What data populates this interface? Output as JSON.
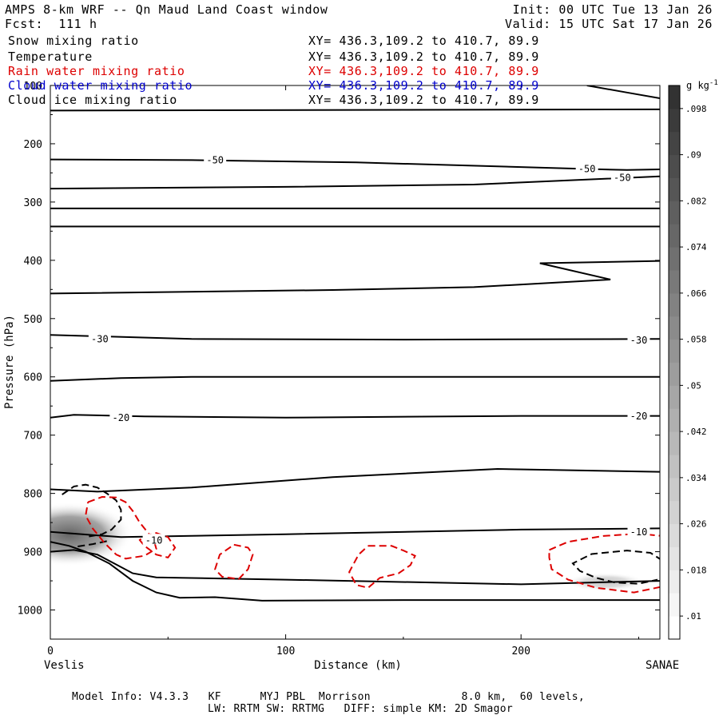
{
  "header": {
    "title": "AMPS 8-km WRF -- Qn Maud Land Coast window",
    "init": "Init: 00 UTC Tue 13 Jan 26",
    "fcst": "Fcst:  111 h",
    "valid": "Valid: 15 UTC Sat 17 Jan 26"
  },
  "legend": [
    {
      "label": "Snow mixing ratio",
      "xy": "XY= 436.3,109.2 to 410.7, 89.9",
      "color": "#000000"
    },
    {
      "label": "Temperature",
      "xy": "XY= 436.3,109.2 to 410.7, 89.9",
      "color": "#000000"
    },
    {
      "label": "Rain water mixing ratio",
      "xy": "XY= 436.3,109.2 to 410.7, 89.9",
      "color": "#dd0000"
    },
    {
      "label": "Cloud water mixing ratio",
      "xy": "XY= 436.3,109.2 to 410.7, 89.9",
      "color": "#0000cc"
    },
    {
      "label": "Cloud ice mixing ratio",
      "xy": "XY= 436.3,109.2 to 410.7, 89.9",
      "color": "#000000"
    }
  ],
  "footer": {
    "line1": "Model Info: V4.3.3   KF      MYJ PBL  Morrison              8.0 km,  60 levels,",
    "line2": "LW: RRTM SW: RRTMG   DIFF: simple KM: 2D Smagor"
  },
  "chart_data": {
    "type": "cross-section",
    "xlabel": "Distance (km)",
    "ylabel": "Pressure (hPa)",
    "x_ticks": [
      0,
      100,
      200
    ],
    "y_ticks": [
      100,
      200,
      300,
      400,
      500,
      600,
      700,
      800,
      900,
      1000
    ],
    "xlim": [
      0,
      259
    ],
    "ylim": [
      1050,
      100
    ],
    "left_endpoint": "Veslis",
    "right_endpoint": "SANAE",
    "colorbar": {
      "unit": "g kg",
      "unit_exp": "-1",
      "ticks": [
        ".01",
        ".018",
        ".026",
        ".034",
        ".042",
        ".05",
        ".058",
        ".066",
        ".074",
        ".082",
        ".09",
        ".098"
      ],
      "min": 0.006,
      "max": 0.102
    },
    "temperature_contour_labels": [
      {
        "text": "-50",
        "x": 70,
        "p": 227
      },
      {
        "text": "-50",
        "x": 228,
        "p": 242
      },
      {
        "text": "-50",
        "x": 243,
        "p": 257
      },
      {
        "text": "-30",
        "x": 21,
        "p": 534
      },
      {
        "text": "-30",
        "x": 250,
        "p": 536
      },
      {
        "text": "-20",
        "x": 30,
        "p": 669
      },
      {
        "text": "-20",
        "x": 250,
        "p": 666
      },
      {
        "text": "-10",
        "x": 44,
        "p": 879
      },
      {
        "text": "-10",
        "x": 250,
        "p": 865
      }
    ],
    "temperature_contours": [
      [
        [
          0,
          143
        ],
        [
          259,
          141
        ]
      ],
      [
        [
          0,
          227
        ],
        [
          60,
          228
        ],
        [
          130,
          232
        ],
        [
          200,
          240
        ],
        [
          225,
          243
        ],
        [
          245,
          245
        ],
        [
          259,
          244
        ]
      ],
      [
        [
          0,
          277
        ],
        [
          100,
          274
        ],
        [
          180,
          270
        ],
        [
          259,
          256
        ]
      ],
      [
        [
          0,
          311
        ],
        [
          259,
          311
        ]
      ],
      [
        [
          0,
          342
        ],
        [
          259,
          342
        ]
      ],
      [
        [
          0,
          457
        ],
        [
          120,
          451
        ],
        [
          180,
          446
        ],
        [
          238,
          433
        ],
        [
          208,
          405
        ],
        [
          259,
          401
        ]
      ],
      [
        [
          0,
          528
        ],
        [
          60,
          535
        ],
        [
          150,
          536
        ],
        [
          259,
          535
        ]
      ],
      [
        [
          0,
          607
        ],
        [
          30,
          602
        ],
        [
          60,
          600
        ],
        [
          100,
          600
        ],
        [
          200,
          600
        ],
        [
          259,
          600
        ]
      ],
      [
        [
          0,
          670
        ],
        [
          10,
          665
        ],
        [
          20,
          666
        ],
        [
          40,
          668
        ],
        [
          100,
          670
        ],
        [
          200,
          667
        ],
        [
          259,
          667
        ]
      ],
      [
        [
          0,
          793
        ],
        [
          20,
          797
        ],
        [
          60,
          790
        ],
        [
          120,
          772
        ],
        [
          190,
          758
        ],
        [
          259,
          763
        ]
      ],
      [
        [
          0,
          866
        ],
        [
          30,
          875
        ],
        [
          100,
          870
        ],
        [
          200,
          862
        ],
        [
          259,
          860
        ]
      ],
      [
        [
          0,
          900
        ],
        [
          10,
          897
        ],
        [
          20,
          905
        ],
        [
          28,
          922
        ],
        [
          35,
          937
        ],
        [
          45,
          944
        ],
        [
          100,
          948
        ],
        [
          200,
          956
        ],
        [
          259,
          950
        ]
      ],
      [
        [
          0,
          883
        ],
        [
          8,
          890
        ],
        [
          15,
          900
        ],
        [
          25,
          920
        ],
        [
          35,
          950
        ],
        [
          45,
          970
        ],
        [
          55,
          979
        ],
        [
          70,
          978
        ],
        [
          90,
          984
        ],
        [
          150,
          983
        ],
        [
          259,
          983
        ]
      ],
      [
        [
          228,
          100
        ],
        [
          245,
          112
        ],
        [
          259,
          122
        ]
      ]
    ],
    "snow_dashed_black": [
      [
        [
          5,
          802
        ],
        [
          10,
          788
        ],
        [
          15,
          785
        ],
        [
          20,
          790
        ],
        [
          24,
          800
        ],
        [
          28,
          812
        ],
        [
          30,
          828
        ],
        [
          30,
          845
        ],
        [
          26,
          862
        ],
        [
          22,
          870
        ],
        [
          15,
          875
        ]
      ],
      [
        [
          260,
          915
        ],
        [
          255,
          902
        ],
        [
          245,
          898
        ],
        [
          230,
          904
        ],
        [
          222,
          920
        ],
        [
          225,
          933
        ],
        [
          232,
          945
        ],
        [
          240,
          953
        ],
        [
          250,
          955
        ],
        [
          258,
          948
        ]
      ],
      [
        [
          24,
          882
        ],
        [
          18,
          887
        ],
        [
          10,
          892
        ]
      ]
    ],
    "rain_dashed_red": [
      [
        [
          16,
          815
        ],
        [
          22,
          806
        ],
        [
          28,
          807
        ],
        [
          32,
          815
        ],
        [
          35,
          830
        ],
        [
          38,
          850
        ],
        [
          40,
          860
        ],
        [
          44,
          880
        ],
        [
          45,
          895
        ],
        [
          40,
          907
        ],
        [
          32,
          912
        ],
        [
          28,
          905
        ],
        [
          23,
          885
        ],
        [
          18,
          860
        ],
        [
          15,
          838
        ],
        [
          16,
          815
        ]
      ],
      [
        [
          40,
          873
        ],
        [
          45,
          868
        ],
        [
          50,
          875
        ],
        [
          53,
          893
        ],
        [
          50,
          910
        ],
        [
          45,
          905
        ],
        [
          40,
          890
        ],
        [
          38,
          880
        ],
        [
          40,
          873
        ]
      ],
      [
        [
          78,
          888
        ],
        [
          84,
          893
        ],
        [
          86,
          905
        ],
        [
          84,
          930
        ],
        [
          80,
          947
        ],
        [
          73,
          943
        ],
        [
          70,
          930
        ],
        [
          72,
          905
        ],
        [
          78,
          888
        ]
      ],
      [
        [
          135,
          890
        ],
        [
          145,
          890
        ],
        [
          150,
          898
        ],
        [
          155,
          907
        ],
        [
          153,
          923
        ],
        [
          148,
          937
        ],
        [
          140,
          945
        ],
        [
          135,
          962
        ],
        [
          130,
          957
        ],
        [
          127,
          935
        ],
        [
          131,
          905
        ],
        [
          135,
          890
        ]
      ],
      [
        [
          212,
          897
        ],
        [
          220,
          883
        ],
        [
          235,
          873
        ],
        [
          250,
          869
        ],
        [
          260,
          873
        ],
        [
          260,
          960
        ],
        [
          248,
          970
        ],
        [
          232,
          962
        ],
        [
          220,
          948
        ],
        [
          213,
          930
        ],
        [
          212,
          910
        ],
        [
          212,
          897
        ]
      ]
    ],
    "cloud_water_blue": [],
    "shading_blobs": [
      {
        "cx_km": 8,
        "p_hpa": 870,
        "rx_km": 27,
        "ry_hpa": 55,
        "peak": 0.08
      },
      {
        "cx_km": 236,
        "p_hpa": 952,
        "rx_km": 17,
        "ry_hpa": 16,
        "peak": 0.034
      }
    ]
  }
}
